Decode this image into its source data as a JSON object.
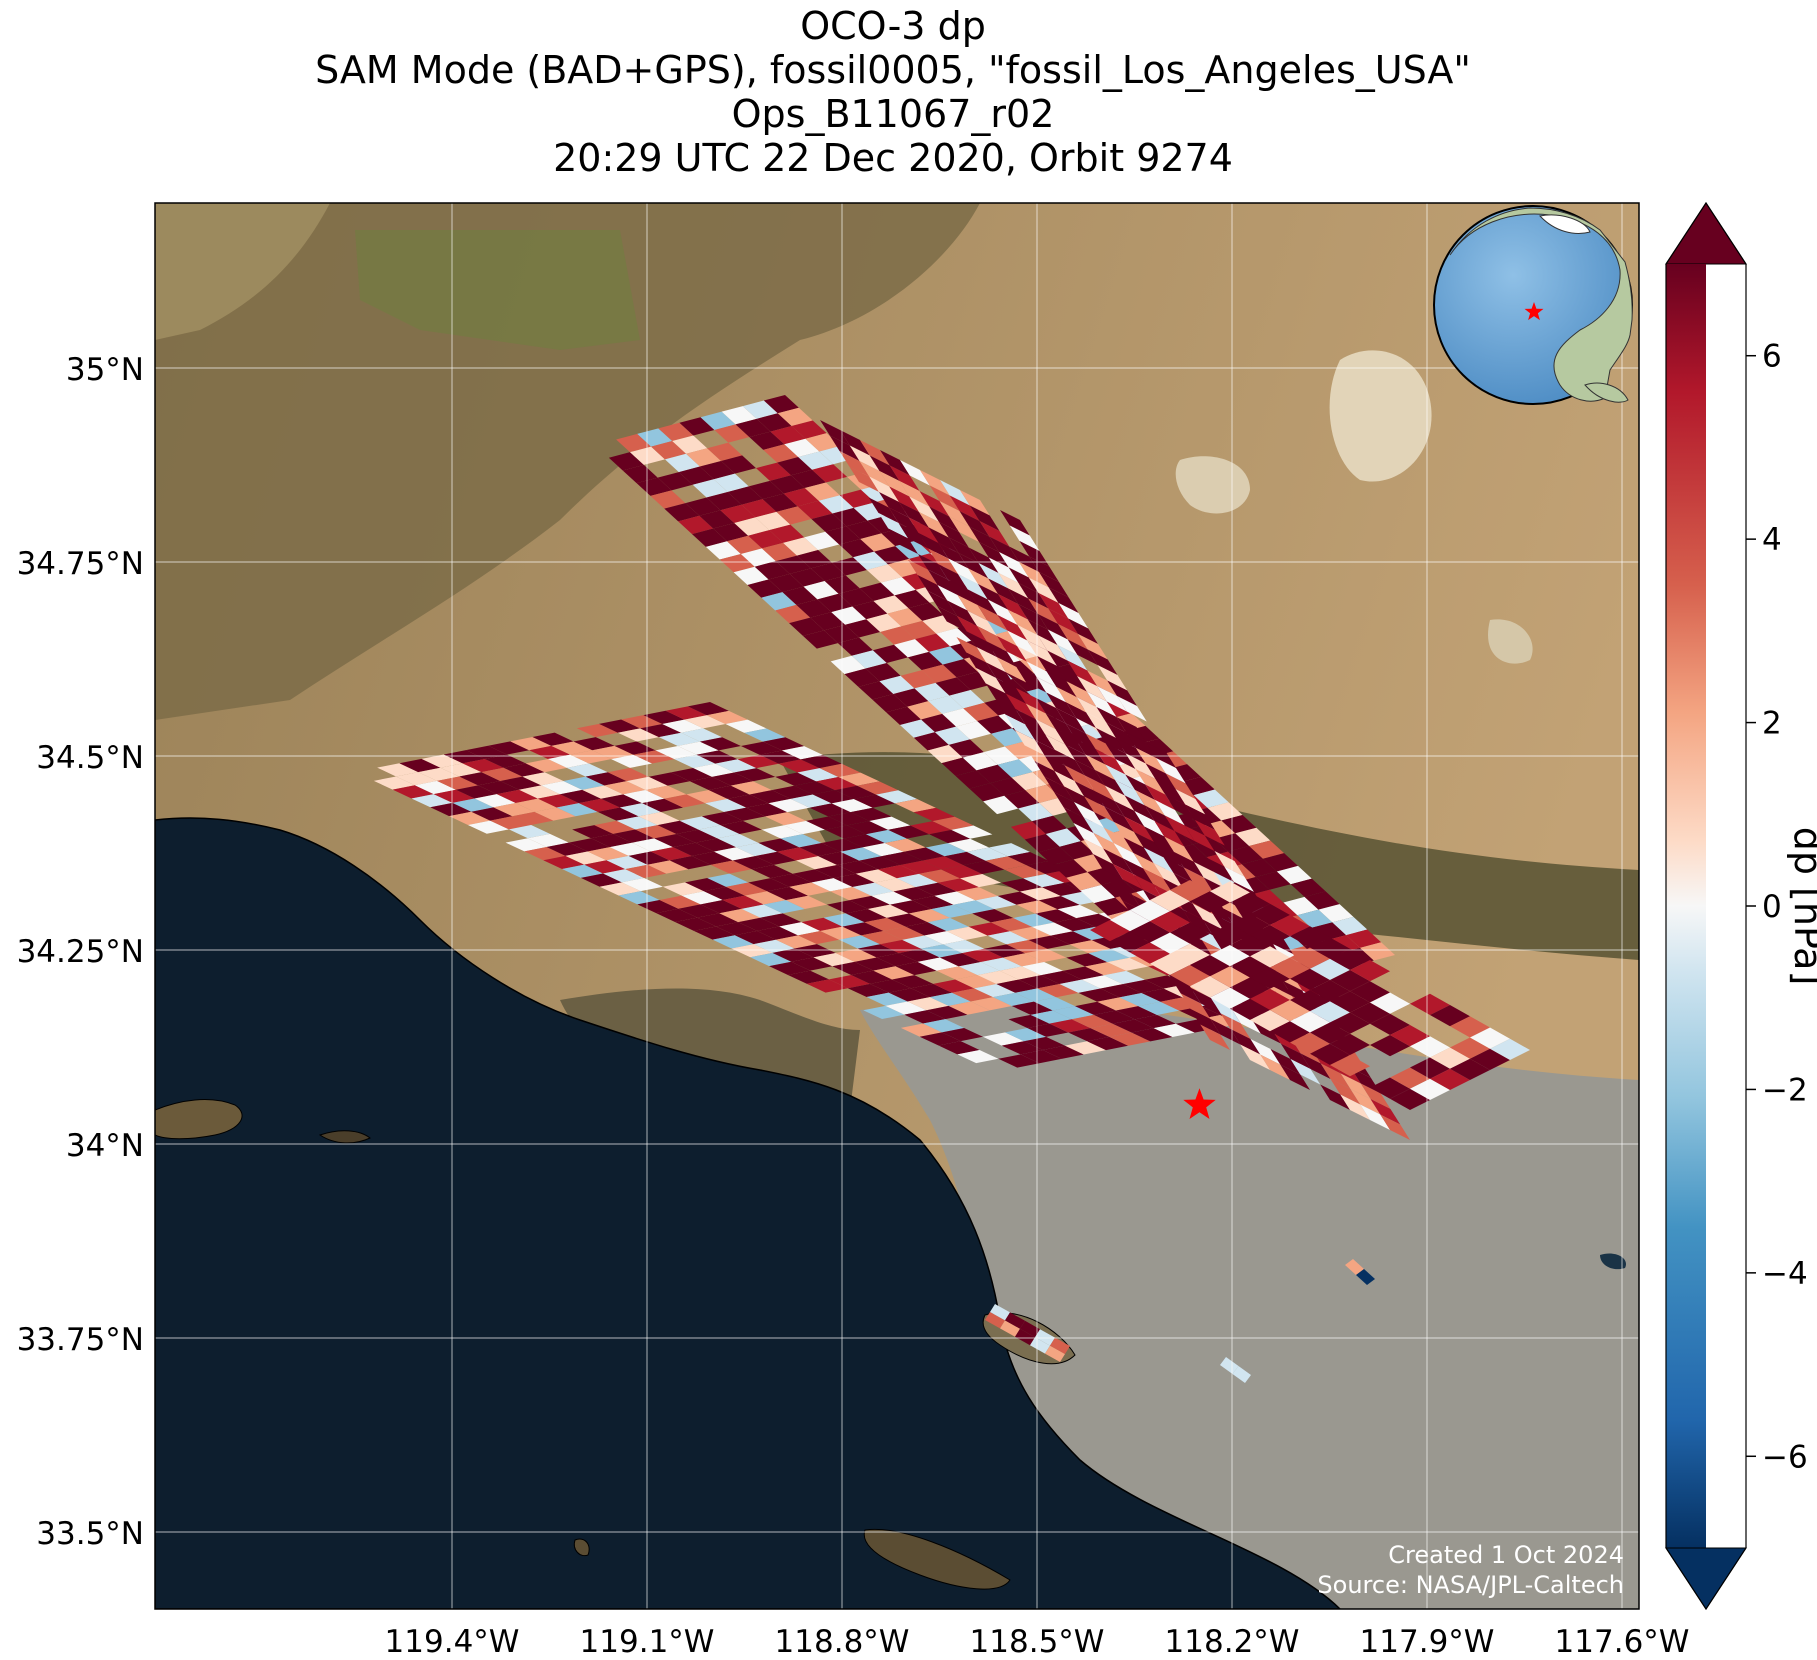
{
  "title": {
    "line1": "OCO-3 dp",
    "line2": "SAM Mode (BAD+GPS), fossil0005, \"fossil_Los_Angeles_USA\"",
    "line3": "Ops_B11067_r02",
    "line4": "20:29 UTC 22 Dec 2020, Orbit 9274"
  },
  "map": {
    "lat_ticks": [
      "35°N",
      "34.75°N",
      "34.5°N",
      "34.25°N",
      "34°N",
      "33.75°N",
      "33.5°N"
    ],
    "lon_ticks": [
      "119.4°W",
      "119.1°W",
      "118.8°W",
      "118.5°W",
      "118.2°W",
      "117.9°W",
      "117.6°W"
    ],
    "lat_values": [
      35.0,
      34.75,
      34.5,
      34.25,
      34.0,
      33.75,
      33.5
    ],
    "lon_values": [
      -119.4,
      -119.1,
      -118.8,
      -118.5,
      -118.2,
      -117.9,
      -117.6
    ],
    "target_marker": {
      "lat": 34.05,
      "lon": -118.25,
      "color": "#ff0000"
    },
    "inset_globe_marker": "star-icon",
    "credit_line1": "Created 1 Oct 2024",
    "credit_line2": "Source: NASA/JPL-Caltech"
  },
  "colorbar": {
    "label": "dp [hPa]",
    "min": -7,
    "max": 7,
    "ticks": [
      6,
      4,
      2,
      0,
      -2,
      -4,
      -6
    ],
    "tick_labels": [
      "6",
      "4",
      "2",
      "0",
      "−2",
      "−4",
      "−6"
    ],
    "colormap": "RdBu_r",
    "extend": "both"
  },
  "colors": {
    "ocean": "#0d1e2e",
    "land": "#a88a60",
    "mountain": "#5d5636",
    "urban": "#9a9890",
    "high": "#67001f",
    "low": "#053061"
  }
}
